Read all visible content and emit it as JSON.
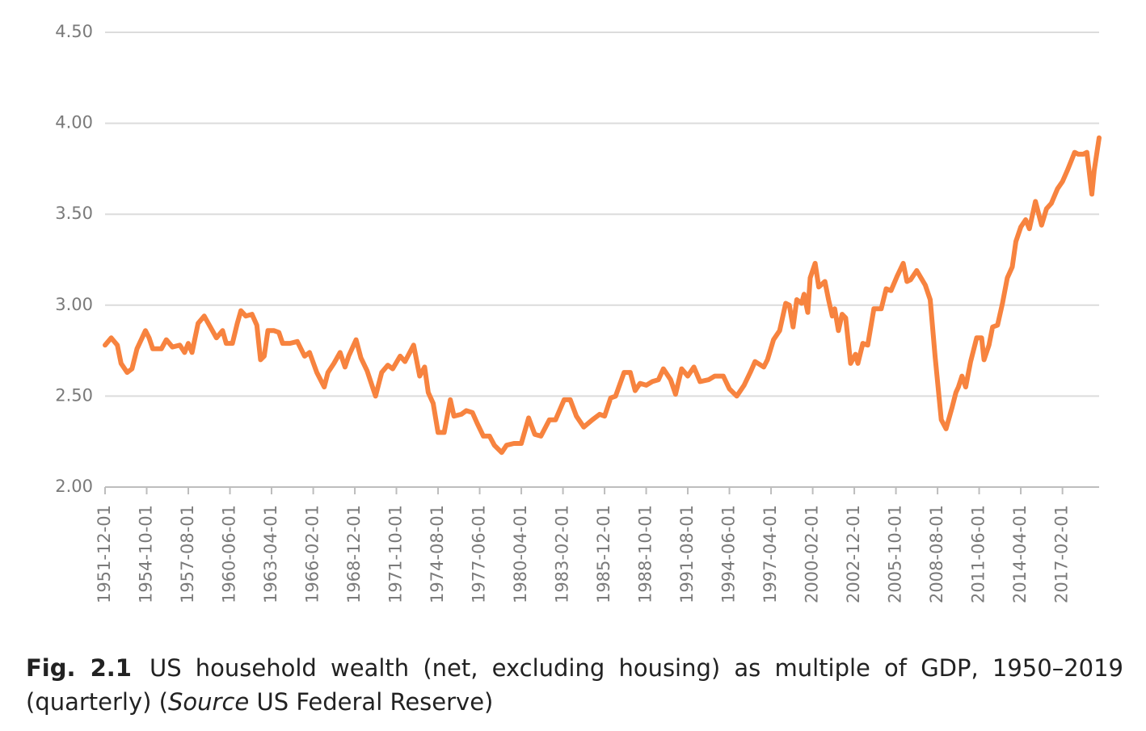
{
  "chart_data": {
    "type": "line",
    "caption": {
      "label": "Fig. 2.1",
      "text": "US household wealth (net, excluding housing) as multiple of GDP, 1950–2019 (quarterly) (",
      "source": "Source",
      "rest": " US Federal Reserve)"
    },
    "x": [
      "1951-12-01",
      "1952-05-01",
      "1952-10-01",
      "1953-01-01",
      "1953-06-01",
      "1953-10-01",
      "1954-02-01",
      "1954-09-01",
      "1954-12-01",
      "1955-03-01",
      "1955-10-01",
      "1956-02-01",
      "1956-07-01",
      "1957-01-01",
      "1957-05-01",
      "1957-08-01",
      "1957-11-01",
      "1958-04-01",
      "1958-09-01",
      "1959-02-01",
      "1959-07-01",
      "1959-12-01",
      "1960-03-01",
      "1960-08-01",
      "1960-12-01",
      "1961-03-01",
      "1961-07-01",
      "1961-12-01",
      "1962-04-01",
      "1962-07-01",
      "1962-10-01",
      "1963-01-01",
      "1963-06-01",
      "1963-10-01",
      "1964-01-01",
      "1964-07-01",
      "1965-01-01",
      "1965-07-01",
      "1965-11-01",
      "1966-05-01",
      "1966-11-01",
      "1967-02-01",
      "1967-07-01",
      "1967-12-01",
      "1968-04-01",
      "1968-07-01",
      "1969-01-01",
      "1969-05-01",
      "1969-10-01",
      "1970-05-01",
      "1970-10-01",
      "1971-03-01",
      "1971-07-01",
      "1972-01-01",
      "1972-05-01",
      "1972-12-01",
      "1973-05-01",
      "1973-09-01",
      "1973-12-01",
      "1974-04-01",
      "1974-08-01",
      "1975-01-01",
      "1975-06-01",
      "1975-09-01",
      "1976-03-01",
      "1976-07-01",
      "1976-12-01",
      "1977-04-01",
      "1977-09-01",
      "1978-02-01",
      "1978-06-01",
      "1978-12-01",
      "1979-04-01",
      "1979-10-01",
      "1980-04-01",
      "1980-10-01",
      "1981-03-01",
      "1981-08-01",
      "1982-03-01",
      "1982-08-01",
      "1983-03-01",
      "1983-08-01",
      "1984-01-01",
      "1984-07-01",
      "1985-02-01",
      "1985-08-01",
      "1985-12-01",
      "1986-05-01",
      "1986-09-01",
      "1987-04-01",
      "1987-09-01",
      "1988-01-01",
      "1988-05-01",
      "1988-10-01",
      "1989-03-01",
      "1989-08-01",
      "1989-12-01",
      "1990-06-01",
      "1990-10-01",
      "1991-03-01",
      "1991-08-01",
      "1992-01-01",
      "1992-06-01",
      "1993-01-01",
      "1993-06-01",
      "1994-01-01",
      "1994-06-01",
      "1994-12-01",
      "1995-06-01",
      "1995-11-01",
      "1996-03-01",
      "1996-10-01",
      "1997-01-01",
      "1997-06-01",
      "1997-11-01",
      "1998-04-01",
      "1998-07-01",
      "1998-10-01",
      "1999-01-01",
      "1999-05-01",
      "1999-07-01",
      "1999-10-01",
      "1999-12-01",
      "2000-04-01",
      "2000-07-01",
      "2000-12-01",
      "2001-03-01",
      "2001-06-01",
      "2001-08-01",
      "2001-11-01",
      "2002-02-01",
      "2002-05-01",
      "2002-09-01",
      "2003-01-01",
      "2003-03-01",
      "2003-07-01",
      "2003-11-01",
      "2004-04-01",
      "2004-10-01",
      "2005-02-01",
      "2005-06-01",
      "2005-11-01",
      "2006-04-01",
      "2006-07-01",
      "2006-10-01",
      "2007-03-01",
      "2007-10-01",
      "2008-02-01",
      "2008-06-01",
      "2008-11-01",
      "2009-03-01",
      "2009-08-01",
      "2009-11-01",
      "2010-01-01",
      "2010-04-01",
      "2010-07-01",
      "2010-11-01",
      "2011-04-01",
      "2011-08-01",
      "2011-10-01",
      "2012-02-01",
      "2012-05-01",
      "2012-09-01",
      "2013-01-01",
      "2013-05-01",
      "2013-09-01",
      "2013-12-01",
      "2014-04-01",
      "2014-08-01",
      "2014-11-01",
      "2015-04-01",
      "2015-09-01",
      "2016-01-01",
      "2016-05-01",
      "2016-10-01",
      "2017-02-01",
      "2017-06-01",
      "2017-12-01",
      "2018-03-01",
      "2018-07-01",
      "2018-10-01",
      "2019-02-01",
      "2019-04-01",
      "2019-08-01"
    ],
    "series": [
      {
        "color": "#f7833f",
        "values": [
          2.78,
          2.82,
          2.78,
          2.68,
          2.63,
          2.65,
          2.76,
          2.86,
          2.82,
          2.76,
          2.76,
          2.81,
          2.77,
          2.78,
          2.74,
          2.79,
          2.74,
          2.9,
          2.94,
          2.88,
          2.82,
          2.86,
          2.79,
          2.79,
          2.9,
          2.97,
          2.94,
          2.95,
          2.89,
          2.7,
          2.72,
          2.86,
          2.86,
          2.85,
          2.79,
          2.79,
          2.8,
          2.72,
          2.74,
          2.63,
          2.55,
          2.63,
          2.68,
          2.74,
          2.66,
          2.72,
          2.81,
          2.71,
          2.64,
          2.5,
          2.63,
          2.67,
          2.65,
          2.72,
          2.69,
          2.78,
          2.61,
          2.66,
          2.52,
          2.46,
          2.3,
          2.3,
          2.48,
          2.39,
          2.4,
          2.42,
          2.41,
          2.35,
          2.28,
          2.28,
          2.23,
          2.19,
          2.23,
          2.24,
          2.24,
          2.38,
          2.29,
          2.28,
          2.37,
          2.37,
          2.48,
          2.48,
          2.39,
          2.33,
          2.37,
          2.4,
          2.39,
          2.49,
          2.5,
          2.63,
          2.63,
          2.53,
          2.57,
          2.56,
          2.58,
          2.59,
          2.65,
          2.59,
          2.51,
          2.65,
          2.61,
          2.66,
          2.58,
          2.59,
          2.61,
          2.61,
          2.54,
          2.5,
          2.56,
          2.63,
          2.69,
          2.66,
          2.7,
          2.81,
          2.86,
          3.01,
          3.0,
          2.88,
          3.03,
          3.01,
          3.06,
          2.96,
          3.15,
          3.23,
          3.1,
          3.13,
          3.03,
          2.94,
          2.98,
          2.86,
          2.95,
          2.93,
          2.68,
          2.73,
          2.68,
          2.79,
          2.78,
          2.98,
          2.98,
          3.09,
          3.08,
          3.16,
          3.23,
          3.13,
          3.14,
          3.19,
          3.11,
          3.03,
          2.72,
          2.37,
          2.32,
          2.44,
          2.52,
          2.55,
          2.61,
          2.55,
          2.69,
          2.82,
          2.82,
          2.7,
          2.78,
          2.88,
          2.89,
          3.01,
          3.15,
          3.21,
          3.35,
          3.43,
          3.47,
          3.42,
          3.57,
          3.44,
          3.53,
          3.56,
          3.64,
          3.68,
          3.74,
          3.84,
          3.83,
          3.83,
          3.84,
          3.61,
          3.74,
          3.92
        ]
      }
    ],
    "xlim": [
      "1951-12-01",
      "2019-08-01"
    ],
    "xticks": [
      "1951-12-01",
      "1954-10-01",
      "1957-08-01",
      "1960-06-01",
      "1963-04-01",
      "1966-02-01",
      "1968-12-01",
      "1971-10-01",
      "1974-08-01",
      "1977-06-01",
      "1980-04-01",
      "1983-02-01",
      "1985-12-01",
      "1988-10-01",
      "1991-08-01",
      "1994-06-01",
      "1997-04-01",
      "2000-02-01",
      "2002-12-01",
      "2005-10-01",
      "2008-08-01",
      "2011-06-01",
      "2014-04-01",
      "2017-02-01"
    ],
    "ylim": [
      2,
      4.5
    ],
    "yticks": [
      {
        "value": 2,
        "label": "2.00"
      },
      {
        "value": 2.5,
        "label": "2.50"
      },
      {
        "value": 3,
        "label": "3.00"
      },
      {
        "value": 3.5,
        "label": "3.50"
      },
      {
        "value": 4,
        "label": "4.00"
      },
      {
        "value": 4.5,
        "label": "4.50"
      }
    ],
    "grid": true
  }
}
